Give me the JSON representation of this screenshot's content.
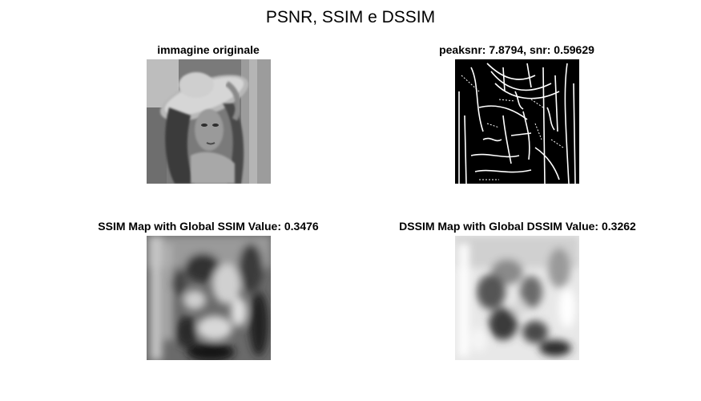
{
  "figure": {
    "title": "PSNR, SSIM e DSSIM"
  },
  "panels": [
    {
      "id": "original",
      "title": "immagine originale",
      "content": "grayscale photograph of a woman wearing a hat"
    },
    {
      "id": "psnr",
      "title": "peaksnr: 7.8794,  snr: 0.59629",
      "content": "black background with white edge lines"
    },
    {
      "id": "ssim",
      "title": "SSIM Map with Global SSIM Value: 0.3476",
      "content": "blurred grayscale similarity map"
    },
    {
      "id": "dssim",
      "title": "DSSIM Map with Global DSSIM Value: 0.3262",
      "content": "bright blurred dissimilarity map"
    }
  ]
}
